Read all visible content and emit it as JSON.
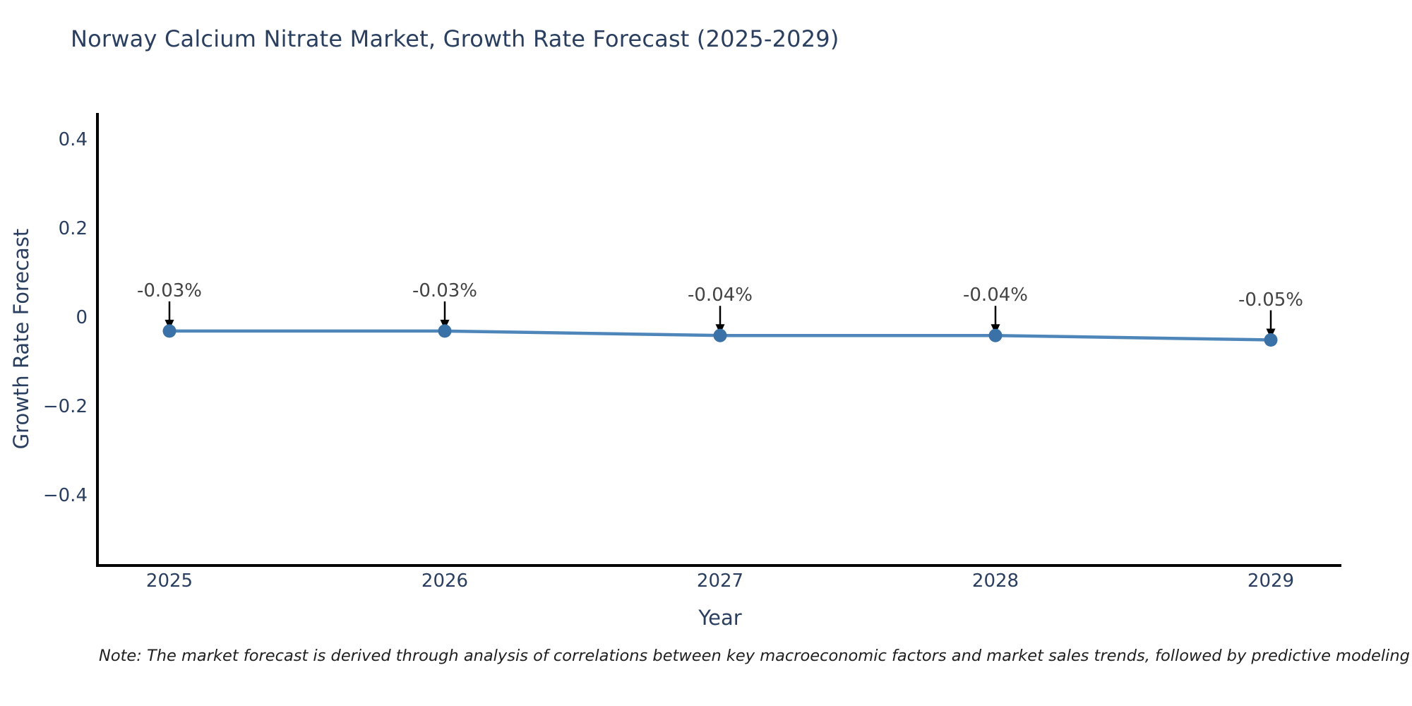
{
  "header": {
    "title": "Norway Calcium Nitrate Market, Growth Rate Forecast (2025-2029)"
  },
  "axes": {
    "x_title": "Year",
    "y_title": "Growth Rate Forecast"
  },
  "footnote": {
    "text": "Note: The market forecast is derived through analysis of correlations between key macroeconomic factors and market sales trends, followed by predictive modeling to project future sa"
  },
  "chart_data": {
    "type": "line",
    "title": "Norway Calcium Nitrate Market, Growth Rate Forecast (2025-2029)",
    "xlabel": "Year",
    "ylabel": "Growth Rate Forecast",
    "x": [
      2025,
      2026,
      2027,
      2028,
      2029
    ],
    "x_tick_labels": [
      "2025",
      "2026",
      "2027",
      "2028",
      "2029"
    ],
    "series": [
      {
        "name": "Growth Rate Forecast",
        "values": [
          -0.03,
          -0.03,
          -0.04,
          -0.04,
          -0.05
        ]
      }
    ],
    "annotations": [
      "-0.03%",
      "-0.03%",
      "-0.04%",
      "-0.04%",
      "-0.05%"
    ],
    "y_tick_labels": [
      "0.4",
      "0.2",
      "0",
      "−0.2",
      "−0.4"
    ],
    "y_tick_values": [
      0.4,
      0.2,
      0,
      -0.2,
      -0.4
    ],
    "ylim": [
      -0.557,
      0.46
    ],
    "grid": false,
    "legend": false,
    "marker_style": "circle",
    "annotation_arrow": "down-black",
    "colors": {
      "line": "#4f86ba",
      "marker": "#3a72a8",
      "axis": "#000000",
      "axis_text": "#2a3f5f",
      "annotation_text": "#434343",
      "arrow": "#000000",
      "background": "#ffffff"
    }
  }
}
